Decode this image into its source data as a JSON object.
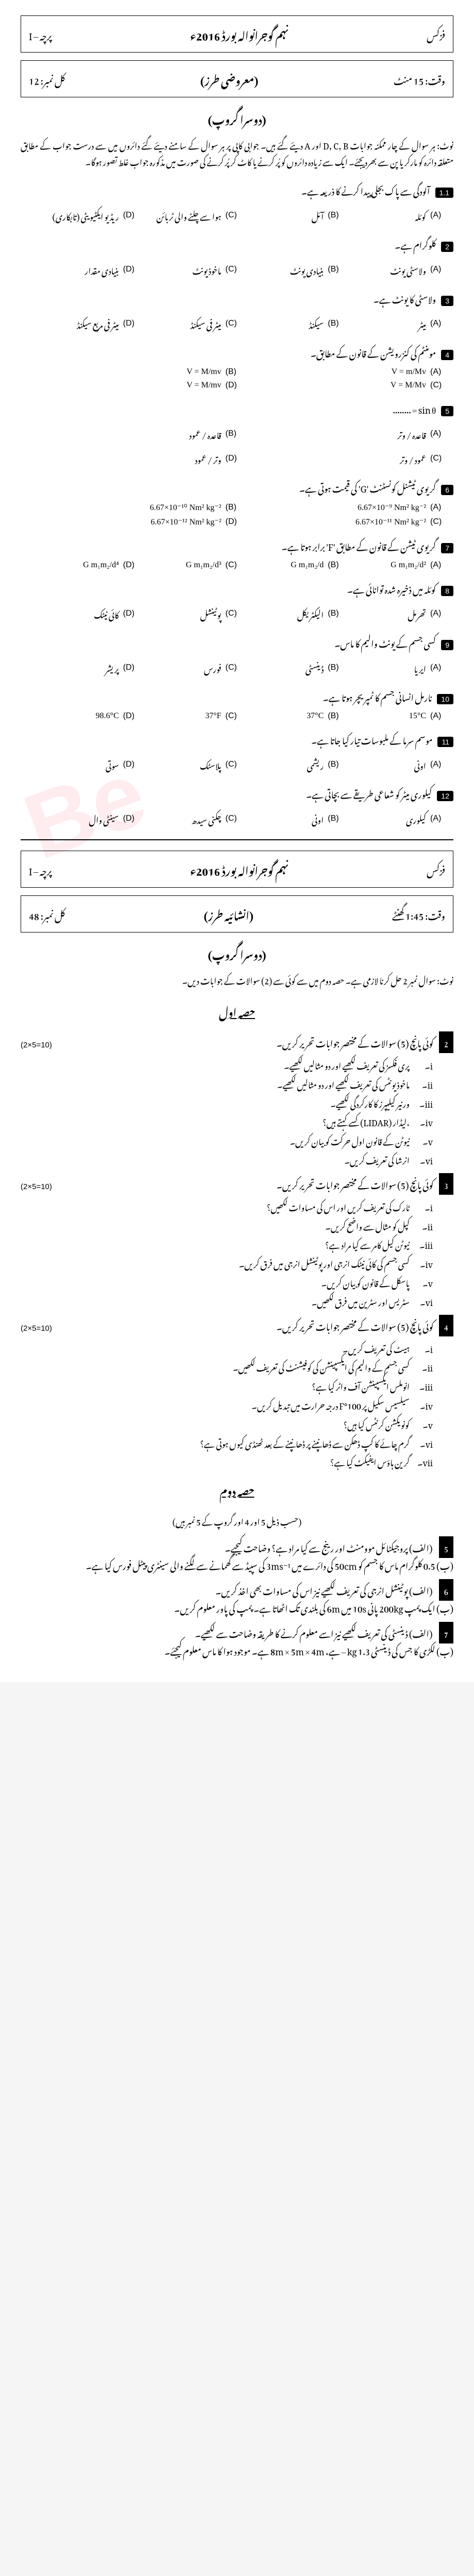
{
  "header1": {
    "subject": "فزکس",
    "board": "نہم گوجرانوالہ بورڈ 2016ء",
    "paper": "پرچہ – I",
    "time": "وقت: 15 منٹ",
    "type": "(معروضی طرز)",
    "marks": "کل نمبر: 12"
  },
  "group": "(دوسرا گروپ)",
  "note1": "نوٹ: ہر سوال کے چار ممکنہ جوابات D, C, B اور A دیئے گئے ہیں۔ جوابی کاپی پر ہر سوال کے سامنے دیئے گئے دائروں میں سے درست جواب کے مطابق متعلقہ دائرہ کو مارکر یا پن سے بھردیجئے۔ ایک سے زیادہ دائروں کو پُر کرنے یا کاٹ کر پُر کرنے کی صورت میں مذکورہ جواب غلط تصور ہوگا۔",
  "mcqs": [
    {
      "num": "1.1",
      "text": "آلودگی سے پاک بجلی پیدا کرنے کا ذریعہ ہے۔",
      "opts": [
        "کوئلہ",
        "آئل",
        "ہوا سے چلنے والی ٹربائن",
        "ریڈیو ایکٹیویٹی (تابکاری)"
      ]
    },
    {
      "num": "2",
      "text": "کلوگرام ہے۔",
      "opts": [
        "ولاسٹی یونٹ",
        "بنیادی یونٹ",
        "ماخوذ یونٹ",
        "بنیادی مقدار",
        "",
        "ماخوذ مقدار"
      ]
    },
    {
      "num": "3",
      "text": "ولاسٹی کا یونٹ ہے۔",
      "opts": [
        "میٹر",
        "سیکنڈ",
        "میٹر فی سیکنڈ",
        "میٹر فی مربع سیکنڈ"
      ]
    },
    {
      "num": "4",
      "text": "مومنٹم کی کنزرویشن کے قانون کے مطابق۔"
    },
    {
      "num": "5",
      "text": "sin θ = ........"
    },
    {
      "num": "6",
      "text": "گریوی ٹیشنل کونسٹنٹ 'G' کی قیمت ہوتی ہے۔"
    },
    {
      "num": "7",
      "text": "گریوی ٹیشن کے قانون کے مطابق 'F' برابر ہوتا ہے۔"
    },
    {
      "num": "8",
      "text": "کوئلہ میں ذخیرہ شدہ توانائی ہے۔",
      "opts": [
        "تھرمل",
        "الیکٹریکل",
        "پوٹینشل",
        "کائی نیٹک"
      ]
    },
    {
      "num": "9",
      "text": "کسی جسم کے یونٹ والیم کا ماس۔",
      "opts": [
        "ایریا",
        "ڈینسٹی",
        "فورس",
        "پریشر"
      ]
    },
    {
      "num": "10",
      "text": "نارمل انسانی جسم کا ٹمپریچر ہوتا ہے۔",
      "opts": [
        "15°C",
        "37°C",
        "37°F",
        "98.6°C"
      ]
    },
    {
      "num": "11",
      "text": "موسم سرما کے ملبوسات تیار کیا جاتا ہے۔",
      "opts": [
        "اونی",
        "ریشمی",
        "پلاسٹک",
        "سوتی"
      ]
    },
    {
      "num": "12",
      "text": "کیلوری میٹر کو شعاعی طریقے سے بچاتی ہے۔",
      "opts": [
        "کیلوری",
        "اونی",
        "چکنی سیدھ",
        "سینٹی وال"
      ]
    }
  ],
  "q4_opts": [
    "V = m/Mv",
    "V = M/mv",
    "V = M/Mv",
    "V = M/mv"
  ],
  "q5_opts": [
    "قاعدہ / وتر",
    "قاعدہ / عمود",
    "عمود / وتر",
    "وتر / عمود"
  ],
  "q6_opts": [
    "6.67×10⁻⁹ Nm² kg⁻²",
    "6.67×10⁻¹⁰ Nm² kg⁻²",
    "6.67×10⁻¹¹ Nm² kg⁻²",
    "6.67×10⁻¹² Nm² kg⁻²"
  ],
  "q7_opts": [
    "G m₁m₂/d²",
    "G m₁m₂/d",
    "G m₁m₂/d³",
    "G m₁m₂/d⁴"
  ],
  "header2": {
    "subject": "فزکس",
    "board": "نہم گوجرانوالہ بورڈ 2016ء",
    "paper": "پرچہ – I",
    "time": "وقت: 1:45 گھنٹے",
    "type": "(انشائیہ طرز)",
    "marks": "کل نمبر: 48"
  },
  "note2": "نوٹ: سوال نمبر 2 حل کرنا لازمی ہے۔ حصہ دوم میں سے کوئی سے (2) سوالات کے جوابات دیں۔",
  "section1": "حصہ اول",
  "q2_intro": "کوئی پانچ (5) سوالات کے مختصر جوابات تحریر کریں۔",
  "q2_marks": "(2×5=10)",
  "q2_parts": [
    "پری فکسز کی تعریف لکھیے اور دو مثالیں لکھیے۔",
    "ماخوذ یونٹس کی تعریف لکھیے اور دو مثالیں لکھیے۔",
    "ورنیر کیلیپرز کا کارکردگی لکھیے۔",
    "،لیڈار (LIDAR) کسے کہتے ہیں؟",
    "نیوٹن کے قانون اول حرکت کو بیان کریں۔",
    "انرشا کی تعریف کریں۔"
  ],
  "q3_intro": "کوئی پانچ (5) سوالات کے مختصر جوابات تحریر کریں۔",
  "q3_marks": "(2×5=10)",
  "q3_parts": [
    "ٹارک کی تعریف کریں اور اس کی مساوات لکھیں؟",
    "کپل کو مثال سے واضح کریں۔",
    "نیوٹن کیل کامر سے کیا مراد ہے؟",
    "کسی جسم کی کائی نیٹک انرجی اور پوٹینشل انرجی میں فرق کریں۔",
    "پاسکل کے قانون کو بیان کریں۔",
    "سٹریس اور سٹرین میں فرق لکھیں۔"
  ],
  "q4_intro": "کوئی پانچ (5) سوالات کے مختصر جوابات تحریر کریں۔",
  "q4_marks": "(2×5=10)",
  "q4_parts": [
    "ہیٹ کی تعریف کریں۔",
    "کسی جسم کے والیم کی ایکسپینشن کی کوفیشنٹ کی تعریف لکھیں۔",
    "انوملس ایکسپینشن آف واٹر کیا ہے؟",
    "سیلسیس سکیل پر 100°F درجہ حرارت میں تبدیل کریں۔",
    "کونویکشن کرنٹس کیا ہیں؟",
    "گرم چائے کا کپ ڈھکن سے ڈھانپنے پر ڈھانپنے کے بعد ٹھنڈی کیوں ہوتی ہے؟",
    "گرین ہاؤس ایفیکٹ کیا ہے؟"
  ],
  "section2": "حصہ دوم",
  "note3": "(حسب ذیل 5 اور 4 اور گروپ کے 5 نمبر ہیں)",
  "long_qs": [
    {
      "num": "5",
      "a": "(الف) پروجیکٹائل موومنٹ اور رینج سے کیا مراد ہے؟ وضاحت کیجیے۔",
      "b": "(ب) 0.5 کلوگرام ماس کا جسم کو 50cm کی دائرے میں 3ms⁻¹ کی سپیڈ سے گھمانے سے لگنے والی سینٹری پیٹل فورس کیا ہے۔"
    },
    {
      "num": "6",
      "a": "(الف) پوٹینشل انرجی کی تعریف لکھیے نیز اس کی مساوات بھی اخذ کریں۔",
      "b": "(ب) ایک پمپ 200kg پانی 10s میں 6m کی بلندی تک اٹھاتا ہے۔ پمپ کی پاور معلوم کریں۔"
    },
    {
      "num": "7",
      "a": "(الف) ڈینسٹی کی تعریف لکھیے نیز اسے معلوم کرنے کا طریقہ وضاحت سے لکھیے۔",
      "b": "(ب) لکڑی کا جس کی ڈینسٹی 1.3 kg – ہے، 8m × 5m × 4m ہے۔ موجود ہوا کا ماس معلوم کیجئے۔"
    }
  ]
}
